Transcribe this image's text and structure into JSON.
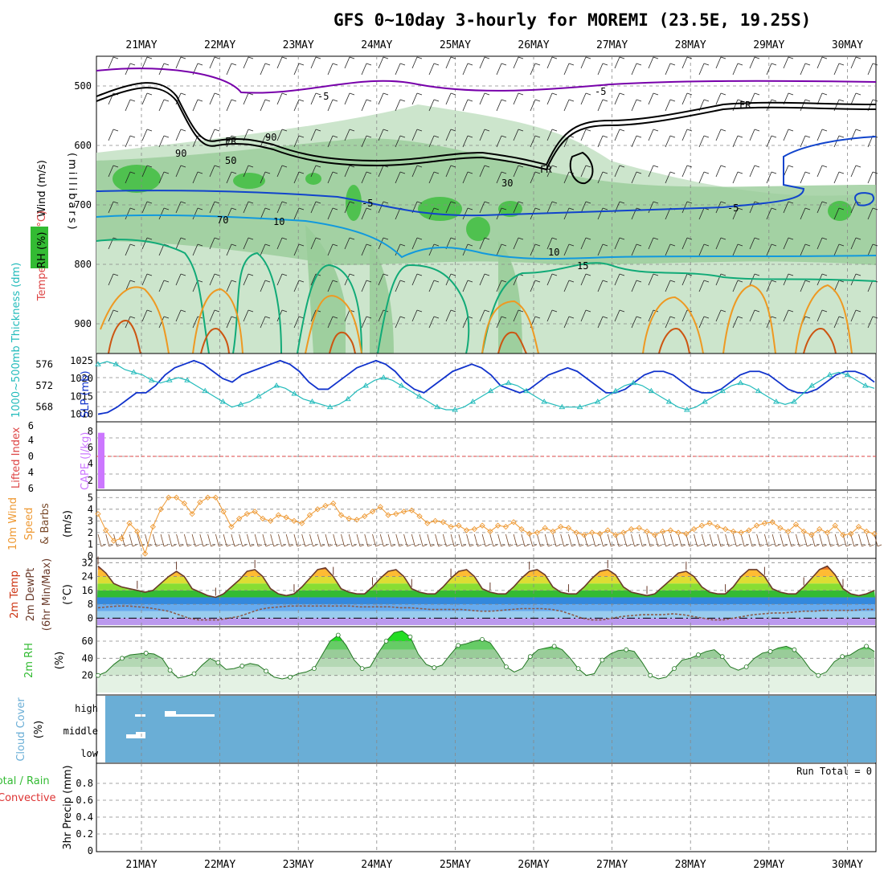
{
  "title": "GFS 0~10day 3-hourly for MOREMI (23.5E, 19.25S)",
  "days": [
    "21MAY",
    "22MAY",
    "23MAY",
    "24MAY",
    "25MAY",
    "26MAY",
    "27MAY",
    "28MAY",
    "29MAY",
    "30MAY"
  ],
  "colors": {
    "rh_dark": "#33bb33",
    "rh_mid": "#99cc99",
    "rh_light": "#cce5cc",
    "temp_5": "#7700aa",
    "temp_5b": "#1144cc",
    "temp_10": "#1199dd",
    "temp_15": "#11aa77",
    "temp_20": "#ee9922",
    "temp_25": "#cc5511",
    "slp": "#1133cc",
    "thick": "#22bbbb",
    "cape": "#cc77ff",
    "wind10": "#ee9933",
    "cloud": "#6aaed6"
  },
  "chart_data": [
    {
      "type": "contour",
      "panel": "upper-air",
      "ylabel_wind": "Wind (m/s)",
      "ylabel_temp": "Temperature (°C)",
      "ylabel_rh": "RH (%)",
      "ylabel_pressure": "(millibars)",
      "yticks": [
        500,
        600,
        700,
        800,
        900
      ],
      "ylim": [
        450,
        950
      ],
      "contour_labels": [
        "-5",
        "-5",
        "FR",
        "FR",
        "FR",
        "-5",
        "-5",
        "10",
        "10",
        "15",
        "50",
        "30",
        "70",
        "90",
        "90"
      ]
    },
    {
      "type": "line",
      "panel": "slp-thickness",
      "ylabel_thick": "1000~500mb Thickness (dm)",
      "ylabel_slp": "SLP (mb)",
      "yticks_slp": [
        1010,
        1015,
        1020,
        1025
      ],
      "yticks_thick": [
        568,
        572,
        576
      ],
      "series": [
        {
          "name": "SLP",
          "values": [
            1010,
            1010.5,
            1012,
            1014,
            1016,
            1016,
            1018,
            1021,
            1023,
            1024,
            1025,
            1024,
            1022,
            1020,
            1019,
            1021,
            1022,
            1023,
            1024,
            1025,
            1024,
            1022,
            1019,
            1017,
            1017,
            1019,
            1021,
            1023,
            1024,
            1025,
            1024,
            1022,
            1019,
            1017,
            1016,
            1018,
            1020,
            1022,
            1023,
            1024,
            1023,
            1021,
            1018,
            1017,
            1016,
            1017,
            1019,
            1021,
            1022,
            1023,
            1022,
            1020,
            1018,
            1016,
            1016,
            1017,
            1019,
            1021,
            1022,
            1022,
            1021,
            1019,
            1017,
            1016,
            1016,
            1017,
            1019,
            1021,
            1022,
            1022,
            1021,
            1019,
            1017,
            1016,
            1016,
            1017,
            1019,
            1021,
            1022,
            1022,
            1021,
            1019
          ]
        },
        {
          "name": "Thickness",
          "values": [
            576,
            576.5,
            576,
            575,
            574.5,
            574,
            573,
            572.5,
            573,
            573.5,
            573,
            572,
            571,
            570,
            569,
            568,
            568.5,
            569,
            570,
            571,
            572,
            571.5,
            570.5,
            569.5,
            569,
            568.5,
            568,
            568.5,
            569.5,
            571,
            572,
            573,
            573.5,
            573,
            572,
            571,
            570,
            569,
            568,
            567.5,
            567.5,
            568,
            569,
            570,
            571,
            572,
            572.5,
            572,
            571,
            570,
            569,
            568.5,
            568,
            568,
            568,
            568.5,
            569,
            570,
            571,
            572,
            572.5,
            572,
            571,
            570,
            569,
            568,
            567.5,
            568,
            569,
            570,
            571,
            572,
            572.5,
            572,
            571,
            570,
            569,
            568.5,
            569,
            570.5,
            572,
            573,
            574,
            574.5,
            574,
            573,
            572,
            571.5
          ]
        }
      ]
    },
    {
      "type": "bar",
      "panel": "cape-li",
      "ylabel_li": "Lifted Index",
      "ylabel_cape": "CAPE (J/kg)",
      "yticks_left": [
        "6",
        "4",
        "0",
        "4",
        "6"
      ],
      "yticks_right": [
        "8",
        "6",
        "4",
        "2"
      ],
      "values": [
        8
      ]
    },
    {
      "type": "line",
      "panel": "wind10",
      "ylabel": "10m Wind Speed (m/s) & Barbs",
      "yticks": [
        0,
        1,
        2,
        3,
        4,
        5
      ],
      "ylim": [
        0,
        5.5
      ],
      "values": [
        3.6,
        2.2,
        1.3,
        1.5,
        2.8,
        2.1,
        0.2,
        2.5,
        4,
        5,
        5,
        4.5,
        3.6,
        4.6,
        5,
        5,
        3.8,
        2.5,
        3.2,
        3.6,
        3.8,
        3.2,
        3,
        3.5,
        3.3,
        3,
        2.8,
        3.5,
        4,
        4.3,
        4.5,
        3.5,
        3.2,
        3.1,
        3.4,
        3.8,
        4.2,
        3.5,
        3.6,
        3.8,
        3.9,
        3.4,
        2.8,
        3,
        2.9,
        2.5,
        2.6,
        2.2,
        2.3,
        2.6,
        2.1,
        2.6,
        2.5,
        2.9,
        2.3,
        1.9,
        2,
        2.4,
        2.1,
        2.5,
        2.4,
        2,
        1.8,
        2,
        1.9,
        2.2,
        1.8,
        2,
        2.3,
        2.4,
        2.1,
        1.8,
        2.1,
        2.2,
        2,
        1.9,
        2.3,
        2.6,
        2.8,
        2.5,
        2.3,
        2.1,
        2,
        2.2,
        2.6,
        2.8,
        2.9,
        2.4,
        2.1,
        2.7,
        2.1,
        1.8,
        2.3,
        2,
        2.6,
        1.8,
        1.9,
        2.5,
        2.1,
        1.9
      ]
    },
    {
      "type": "area",
      "panel": "temp2m",
      "ylabel": "2m Temp 2m DewPt (6hr Min/Max) (°C)",
      "yticks": [
        0,
        8,
        16,
        24,
        32
      ],
      "ylim": [
        -4,
        34
      ],
      "series": [
        {
          "name": "2m Temp",
          "values": [
            30,
            26,
            20,
            18,
            17,
            16,
            15,
            16,
            20,
            24,
            27,
            24,
            17,
            15,
            13,
            12,
            14,
            18,
            22,
            27,
            28,
            24,
            17,
            14,
            13,
            14,
            18,
            23,
            28,
            29,
            24,
            17,
            15,
            14,
            14,
            18,
            23,
            27,
            28,
            24,
            17,
            15,
            14,
            14,
            18,
            23,
            27,
            28,
            24,
            17,
            15,
            14,
            14,
            18,
            23,
            27,
            28,
            25,
            18,
            15,
            14,
            14,
            18,
            23,
            27,
            28,
            25,
            18,
            15,
            14,
            13,
            14,
            18,
            22,
            26,
            27,
            24,
            18,
            15,
            14,
            14,
            18,
            24,
            28,
            28,
            24,
            17,
            15,
            14,
            14,
            18,
            23,
            28,
            30,
            25,
            17,
            14,
            13,
            14,
            16
          ]
        },
        {
          "name": "2m DewPt",
          "values": [
            6,
            6.5,
            7,
            7,
            6.5,
            6,
            5,
            4,
            2,
            0,
            -1,
            -1,
            -1,
            0,
            1,
            3,
            5,
            6,
            6.5,
            7,
            7,
            7,
            7,
            7,
            7,
            7,
            6.5,
            6.5,
            6.5,
            6.5,
            6,
            6,
            5.5,
            5,
            5,
            5,
            5,
            4.5,
            4,
            4,
            4.5,
            5,
            5.5,
            5.5,
            5.5,
            5,
            4,
            2,
            0,
            -1,
            -1,
            0,
            1,
            1.5,
            2,
            2,
            2,
            2.5,
            2,
            1,
            0,
            -1,
            -1,
            0,
            1,
            2,
            2.5,
            3,
            3,
            3.5,
            4,
            4,
            4.5,
            4.5,
            4.5,
            4.5,
            5,
            5
          ]
        }
      ]
    },
    {
      "type": "area",
      "panel": "rh2m",
      "ylabel": "2m RH (%)",
      "yticks": [
        20,
        40,
        60
      ],
      "ylim": [
        0,
        75
      ],
      "values": [
        20,
        24,
        33,
        40,
        44,
        45,
        46,
        45,
        40,
        26,
        17,
        19,
        22,
        32,
        40,
        35,
        27,
        28,
        31,
        34,
        32,
        25,
        18,
        16,
        18,
        22,
        24,
        28,
        44,
        60,
        67,
        55,
        38,
        28,
        30,
        46,
        60,
        70,
        72,
        65,
        45,
        33,
        29,
        32,
        44,
        55,
        57,
        60,
        62,
        58,
        45,
        30,
        24,
        28,
        42,
        50,
        52,
        54,
        50,
        40,
        28,
        20,
        22,
        38,
        45,
        49,
        50,
        48,
        35,
        20,
        16,
        18,
        28,
        38,
        40,
        44,
        48,
        50,
        42,
        30,
        26,
        30,
        40,
        46,
        48,
        52,
        54,
        50,
        40,
        27,
        20,
        24,
        36,
        42,
        44,
        50,
        54,
        48
      ]
    },
    {
      "type": "bar",
      "panel": "cloud",
      "ylabel": "Cloud Cover (%)",
      "yticks": [
        "high",
        "middle",
        "low"
      ]
    },
    {
      "type": "bar",
      "panel": "precip",
      "ylabel_left": "Total / Rain",
      "ylabel_left2": "Convective",
      "ylabel": "3hr Precip (mm)",
      "yticks": [
        0,
        0.2,
        0.4,
        0.6,
        0.8
      ],
      "ylim": [
        0,
        1
      ],
      "run_total": "Run Total = 0"
    }
  ]
}
